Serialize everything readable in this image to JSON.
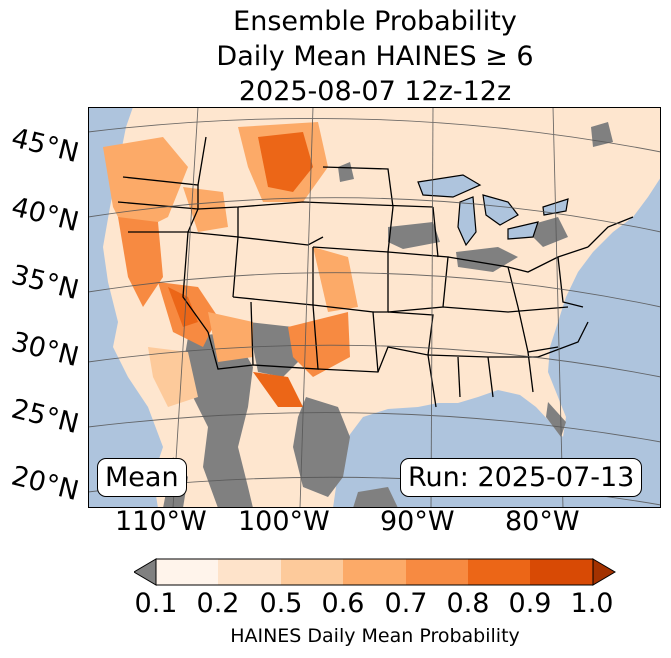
{
  "title": {
    "line1": "Ensemble Probability",
    "line2": "Daily Mean HAINES ≥ 6",
    "line3": "2025-08-07 12z-12z"
  },
  "map": {
    "lat_labels": [
      "45°N",
      "40°N",
      "35°N",
      "30°N",
      "25°N",
      "20°N"
    ],
    "lon_labels": [
      "110°W",
      "100°W",
      "90°W",
      "80°W"
    ],
    "mean_label": "Mean",
    "run_label": "Run: 2025-07-13",
    "colors": {
      "ocean": "#aec4dd",
      "no_data": "#808080",
      "lake": "#aec4dd",
      "border": "#000000",
      "grid": "#555555"
    }
  },
  "colorbar": {
    "ticks": [
      "0.1",
      "0.2",
      "0.5",
      "0.6",
      "0.7",
      "0.8",
      "0.9",
      "1.0"
    ],
    "colors": [
      "#fff4eb",
      "#fee3ca",
      "#fdca9b",
      "#fcaa68",
      "#f78a41",
      "#ec6617",
      "#d84a05"
    ],
    "under_color": "#808080",
    "over_color": "#a33200",
    "label": "HAINES Daily Mean Probability"
  }
}
